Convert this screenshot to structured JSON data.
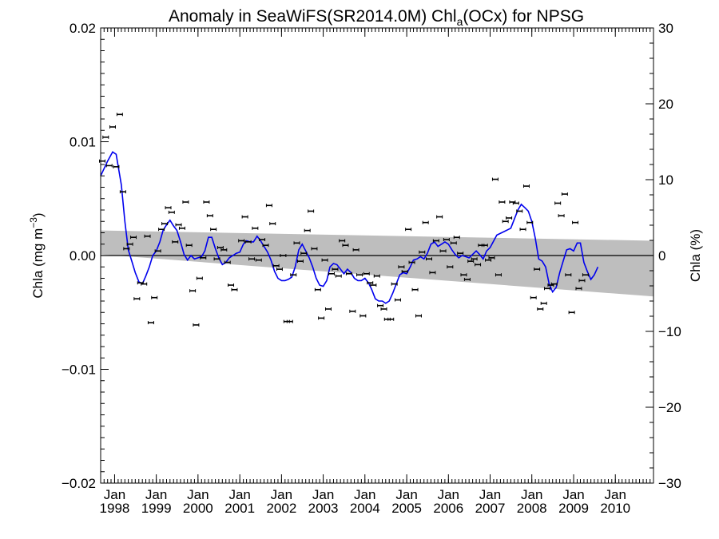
{
  "chart_data": {
    "type": "scatter",
    "title": "Anomaly in SeaWiFS(SR2014.0M) Chl",
    "title_sub": "a",
    "title_end": "(OCx) for NPSG",
    "ylabel": "Chla (mg m",
    "ylabel_sup": "−3",
    "ylabel_end": ")",
    "y2label": "Chla (%)",
    "xlim": [
      "1997-09-01",
      "2010-12-01"
    ],
    "ylim": [
      -0.02,
      0.02
    ],
    "y2lim": [
      -30,
      30
    ],
    "yticks": [
      -0.02,
      -0.01,
      0.0,
      0.01,
      0.02
    ],
    "ytick_labels": [
      "−0.02",
      "−0.01",
      "0.00",
      "0.01",
      "0.02"
    ],
    "y2ticks": [
      -30,
      -20,
      -10,
      0,
      10,
      20,
      30
    ],
    "y2tick_labels": [
      "−30",
      "−20",
      "−10",
      "0",
      "10",
      "20",
      "30"
    ],
    "xticks": [
      {
        "month": "Jan",
        "year": "1998",
        "date": "1998-01-01"
      },
      {
        "month": "Jan",
        "year": "1999",
        "date": "1999-01-01"
      },
      {
        "month": "Jan",
        "year": "2000",
        "date": "2000-01-01"
      },
      {
        "month": "Jan",
        "year": "2001",
        "date": "2001-01-01"
      },
      {
        "month": "Jan",
        "year": "2002",
        "date": "2002-01-01"
      },
      {
        "month": "Jan",
        "year": "2003",
        "date": "2003-01-01"
      },
      {
        "month": "Jan",
        "year": "2004",
        "date": "2004-01-01"
      },
      {
        "month": "Jan",
        "year": "2005",
        "date": "2005-01-01"
      },
      {
        "month": "Jan",
        "year": "2006",
        "date": "2006-01-01"
      },
      {
        "month": "Jan",
        "year": "2007",
        "date": "2007-01-01"
      },
      {
        "month": "Jan",
        "year": "2008",
        "date": "2008-01-01"
      },
      {
        "month": "Jan",
        "year": "2009",
        "date": "2009-01-01"
      },
      {
        "month": "Jan",
        "year": "2010",
        "date": "2010-01-01"
      }
    ],
    "zero_line": 0.0,
    "trend_band": {
      "start": "1997-09-01",
      "end": "2010-12-01",
      "upper": [
        0.0022,
        0.0013
      ],
      "lower": [
        0.0001,
        -0.0036
      ]
    },
    "points": [
      [
        "1997-09-15",
        0.0083
      ],
      [
        "1997-10-15",
        0.0104
      ],
      [
        "1997-11-15",
        0.0079
      ],
      [
        "1997-12-15",
        0.0113
      ],
      [
        "1998-01-15",
        0.0078
      ],
      [
        "1998-02-15",
        0.0124
      ],
      [
        "1998-03-15",
        0.0056
      ],
      [
        "1998-04-15",
        0.0006
      ],
      [
        "1998-05-15",
        0.001
      ],
      [
        "1998-06-15",
        0.0016
      ],
      [
        "1998-07-15",
        -0.0038
      ],
      [
        "1998-08-15",
        -0.0024
      ],
      [
        "1998-09-15",
        -0.0025
      ],
      [
        "1998-10-15",
        0.0017
      ],
      [
        "1998-11-15",
        -0.0059
      ],
      [
        "1998-12-15",
        -0.0037
      ],
      [
        "1999-01-15",
        0.0004
      ],
      [
        "1999-02-15",
        0.0023
      ],
      [
        "1999-03-15",
        0.0028
      ],
      [
        "1999-04-15",
        0.0042
      ],
      [
        "1999-05-15",
        0.0038
      ],
      [
        "1999-06-15",
        0.0012
      ],
      [
        "1999-07-15",
        0.0027
      ],
      [
        "1999-08-15",
        0.0024
      ],
      [
        "1999-09-15",
        0.0047
      ],
      [
        "1999-10-15",
        0.0009
      ],
      [
        "1999-11-15",
        -0.0031
      ],
      [
        "1999-12-15",
        -0.0061
      ],
      [
        "2000-01-15",
        -0.002
      ],
      [
        "2000-02-15",
        -0.0002
      ],
      [
        "2000-03-15",
        0.0047
      ],
      [
        "2000-04-15",
        0.0035
      ],
      [
        "2000-05-15",
        0.0023
      ],
      [
        "2000-06-15",
        -0.0003
      ],
      [
        "2000-07-15",
        0.0007
      ],
      [
        "2000-08-15",
        0.0005
      ],
      [
        "2000-09-15",
        -0.0006
      ],
      [
        "2000-10-15",
        -0.0026
      ],
      [
        "2000-11-15",
        -0.003
      ],
      [
        "2001-01-15",
        0.0013
      ],
      [
        "2001-02-15",
        0.0034
      ],
      [
        "2001-03-15",
        0.0012
      ],
      [
        "2001-04-15",
        -0.0003
      ],
      [
        "2001-05-15",
        0.0024
      ],
      [
        "2001-06-15",
        -0.0004
      ],
      [
        "2001-07-15",
        0.0014
      ],
      [
        "2001-08-15",
        0.0009
      ],
      [
        "2001-09-15",
        0.0044
      ],
      [
        "2001-10-15",
        0.0028
      ],
      [
        "2001-11-15",
        -0.0009
      ],
      [
        "2001-12-15",
        -0.0012
      ],
      [
        "2002-01-15",
        0.0
      ],
      [
        "2002-02-15",
        -0.0058
      ],
      [
        "2002-03-15",
        -0.0058
      ],
      [
        "2002-04-15",
        -0.0017
      ],
      [
        "2002-05-15",
        0.0011
      ],
      [
        "2002-06-15",
        -0.0005
      ],
      [
        "2002-07-15",
        0.0002
      ],
      [
        "2002-08-15",
        0.0022
      ],
      [
        "2002-09-15",
        0.0039
      ],
      [
        "2002-10-15",
        0.0006
      ],
      [
        "2002-11-15",
        -0.003
      ],
      [
        "2002-12-15",
        -0.0055
      ],
      [
        "2003-01-15",
        -0.0004
      ],
      [
        "2003-02-15",
        -0.0047
      ],
      [
        "2003-03-15",
        -0.0016
      ],
      [
        "2003-04-15",
        -0.0012
      ],
      [
        "2003-05-15",
        -0.0018
      ],
      [
        "2003-06-15",
        0.0013
      ],
      [
        "2003-07-15",
        0.0009
      ],
      [
        "2003-08-15",
        -0.0016
      ],
      [
        "2003-09-15",
        -0.0049
      ],
      [
        "2003-10-15",
        0.0005
      ],
      [
        "2003-11-15",
        -0.0017
      ],
      [
        "2003-12-15",
        -0.0053
      ],
      [
        "2004-01-15",
        -0.0016
      ],
      [
        "2004-02-15",
        -0.0024
      ],
      [
        "2004-03-15",
        -0.0026
      ],
      [
        "2004-04-15",
        -0.0018
      ],
      [
        "2004-05-15",
        -0.0044
      ],
      [
        "2004-06-15",
        -0.0047
      ],
      [
        "2004-07-15",
        -0.0056
      ],
      [
        "2004-08-15",
        -0.0056
      ],
      [
        "2004-09-15",
        -0.0025
      ],
      [
        "2004-10-15",
        -0.0039
      ],
      [
        "2004-11-15",
        -0.001
      ],
      [
        "2004-12-15",
        -0.0014
      ],
      [
        "2005-01-15",
        0.0023
      ],
      [
        "2005-02-15",
        -0.0006
      ],
      [
        "2005-03-15",
        -0.003
      ],
      [
        "2005-04-15",
        -0.0053
      ],
      [
        "2005-05-15",
        0.0003
      ],
      [
        "2005-06-15",
        0.0029
      ],
      [
        "2005-07-15",
        -0.0003
      ],
      [
        "2005-08-15",
        -0.0015
      ],
      [
        "2005-09-15",
        0.0013
      ],
      [
        "2005-10-15",
        0.0034
      ],
      [
        "2005-11-15",
        0.0004
      ],
      [
        "2005-12-15",
        0.0014
      ],
      [
        "2006-01-15",
        -0.001
      ],
      [
        "2006-02-15",
        0.0011
      ],
      [
        "2006-03-15",
        0.0016
      ],
      [
        "2006-04-15",
        0.0002
      ],
      [
        "2006-05-15",
        -0.0017
      ],
      [
        "2006-06-15",
        -0.0021
      ],
      [
        "2006-07-15",
        -0.0005
      ],
      [
        "2006-08-15",
        -0.0003
      ],
      [
        "2006-09-15",
        -0.0008
      ],
      [
        "2006-10-15",
        0.0009
      ],
      [
        "2006-11-15",
        0.0009
      ],
      [
        "2006-12-15",
        -0.0004
      ],
      [
        "2007-01-15",
        -0.0002
      ],
      [
        "2007-02-15",
        0.0067
      ],
      [
        "2007-03-15",
        -0.0017
      ],
      [
        "2007-04-15",
        0.0047
      ],
      [
        "2007-05-15",
        0.003
      ],
      [
        "2007-06-15",
        0.0033
      ],
      [
        "2007-07-15",
        0.0047
      ],
      [
        "2007-08-15",
        0.0046
      ],
      [
        "2007-09-15",
        0.0039
      ],
      [
        "2007-10-15",
        0.0023
      ],
      [
        "2007-11-15",
        0.0061
      ],
      [
        "2007-12-15",
        0.0029
      ],
      [
        "2008-01-15",
        -0.0037
      ],
      [
        "2008-02-15",
        -0.0012
      ],
      [
        "2008-03-15",
        -0.0047
      ],
      [
        "2008-04-15",
        -0.0042
      ],
      [
        "2008-05-15",
        -0.0029
      ],
      [
        "2008-06-15",
        -0.0026
      ],
      [
        "2008-07-15",
        -0.0025
      ],
      [
        "2008-08-15",
        0.0046
      ],
      [
        "2008-09-15",
        0.0035
      ],
      [
        "2008-10-15",
        0.0054
      ],
      [
        "2008-11-15",
        -0.0017
      ],
      [
        "2008-12-15",
        -0.005
      ],
      [
        "2009-01-15",
        0.0029
      ],
      [
        "2009-02-15",
        -0.0029
      ],
      [
        "2009-03-15",
        -0.0022
      ],
      [
        "2009-04-15",
        -0.0017
      ]
    ],
    "series": [
      {
        "color": "#0000ee",
        "points": [
          [
            "1997-09-01",
            0.007
          ],
          [
            "1997-11-01",
            0.0083
          ],
          [
            "1997-12-15",
            0.0091
          ],
          [
            "1998-01-15",
            0.0089
          ],
          [
            "1998-03-01",
            0.0062
          ],
          [
            "1998-04-01",
            0.003
          ],
          [
            "1998-05-01",
            0.0005
          ],
          [
            "1998-06-01",
            -0.0005
          ],
          [
            "1998-07-01",
            -0.0015
          ],
          [
            "1998-08-01",
            -0.0023
          ],
          [
            "1998-09-01",
            -0.0025
          ],
          [
            "1998-10-01",
            -0.0018
          ],
          [
            "1998-11-01",
            -0.001
          ],
          [
            "1998-12-01",
            0.0
          ],
          [
            "1999-01-01",
            0.0004
          ],
          [
            "1999-02-01",
            0.0012
          ],
          [
            "1999-03-01",
            0.0022
          ],
          [
            "1999-04-01",
            0.0027
          ],
          [
            "1999-05-01",
            0.0031
          ],
          [
            "1999-06-01",
            0.0026
          ],
          [
            "1999-07-01",
            0.0022
          ],
          [
            "1999-08-01",
            0.0012
          ],
          [
            "1999-09-01",
            0.0001
          ],
          [
            "1999-10-01",
            -0.0004
          ],
          [
            "1999-11-01",
            0.0
          ],
          [
            "1999-12-01",
            -0.0003
          ],
          [
            "2000-01-01",
            -0.0002
          ],
          [
            "2000-02-01",
            -0.0001
          ],
          [
            "2000-03-01",
            0.0004
          ],
          [
            "2000-04-01",
            0.0016
          ],
          [
            "2000-05-01",
            0.0016
          ],
          [
            "2000-06-01",
            0.0006
          ],
          [
            "2000-07-01",
            -0.0002
          ],
          [
            "2000-08-01",
            -0.0008
          ],
          [
            "2000-09-01",
            -0.0006
          ],
          [
            "2000-10-01",
            -0.0002
          ],
          [
            "2000-11-01",
            0.0
          ],
          [
            "2000-12-01",
            0.0002
          ],
          [
            "2001-01-01",
            0.0003
          ],
          [
            "2001-02-01",
            0.001
          ],
          [
            "2001-03-01",
            0.0013
          ],
          [
            "2001-04-01",
            0.0012
          ],
          [
            "2001-05-01",
            0.0012
          ],
          [
            "2001-06-01",
            0.0017
          ],
          [
            "2001-07-01",
            0.0013
          ],
          [
            "2001-08-01",
            0.0008
          ],
          [
            "2001-09-01",
            0.0003
          ],
          [
            "2001-10-01",
            -0.0004
          ],
          [
            "2001-11-01",
            -0.0014
          ],
          [
            "2001-12-01",
            -0.002
          ],
          [
            "2002-01-01",
            -0.0022
          ],
          [
            "2002-02-01",
            -0.0022
          ],
          [
            "2002-03-01",
            -0.0021
          ],
          [
            "2002-04-01",
            -0.0019
          ],
          [
            "2002-05-01",
            -0.001
          ],
          [
            "2002-06-01",
            0.0005
          ],
          [
            "2002-07-01",
            0.001
          ],
          [
            "2002-08-01",
            0.0004
          ],
          [
            "2002-09-01",
            -0.0002
          ],
          [
            "2002-10-01",
            -0.001
          ],
          [
            "2002-11-01",
            -0.002
          ],
          [
            "2002-12-01",
            -0.0026
          ],
          [
            "2003-01-01",
            -0.0027
          ],
          [
            "2003-02-01",
            -0.0022
          ],
          [
            "2003-03-01",
            -0.001
          ],
          [
            "2003-04-01",
            -0.0007
          ],
          [
            "2003-05-01",
            -0.0008
          ],
          [
            "2003-06-01",
            -0.0012
          ],
          [
            "2003-07-01",
            -0.0016
          ],
          [
            "2003-08-01",
            -0.0012
          ],
          [
            "2003-09-01",
            -0.0015
          ],
          [
            "2003-10-01",
            -0.002
          ],
          [
            "2003-11-01",
            -0.0022
          ],
          [
            "2003-12-01",
            -0.0022
          ],
          [
            "2004-01-01",
            -0.002
          ],
          [
            "2004-02-01",
            -0.0024
          ],
          [
            "2004-03-01",
            -0.003
          ],
          [
            "2004-04-01",
            -0.0038
          ],
          [
            "2004-05-01",
            -0.004
          ],
          [
            "2004-06-01",
            -0.004
          ],
          [
            "2004-07-01",
            -0.0042
          ],
          [
            "2004-08-01",
            -0.004
          ],
          [
            "2004-09-01",
            -0.0033
          ],
          [
            "2004-10-01",
            -0.0025
          ],
          [
            "2004-11-01",
            -0.0017
          ],
          [
            "2004-12-01",
            -0.0015
          ],
          [
            "2005-01-01",
            -0.0016
          ],
          [
            "2005-02-01",
            -0.001
          ],
          [
            "2005-03-01",
            -0.0004
          ],
          [
            "2005-04-01",
            -0.0003
          ],
          [
            "2005-05-01",
            -0.0001
          ],
          [
            "2005-06-01",
            -0.0003
          ],
          [
            "2005-07-01",
            0.0002
          ],
          [
            "2005-08-01",
            0.001
          ],
          [
            "2005-09-01",
            0.0012
          ],
          [
            "2005-10-01",
            0.0008
          ],
          [
            "2005-11-01",
            0.001
          ],
          [
            "2005-12-01",
            0.0012
          ],
          [
            "2006-01-01",
            0.001
          ],
          [
            "2006-02-01",
            0.0005
          ],
          [
            "2006-03-01",
            0.0001
          ],
          [
            "2006-04-01",
            -0.0002
          ],
          [
            "2006-05-01",
            0.0
          ],
          [
            "2006-06-01",
            -0.0001
          ],
          [
            "2006-07-01",
            -0.0002
          ],
          [
            "2006-08-01",
            0.0001
          ],
          [
            "2006-09-01",
            0.0004
          ],
          [
            "2006-10-01",
            0.0001
          ],
          [
            "2006-11-01",
            -0.0003
          ],
          [
            "2006-12-01",
            0.0004
          ],
          [
            "2007-01-01",
            0.0007
          ],
          [
            "2007-03-01",
            0.0018
          ],
          [
            "2007-05-01",
            0.0021
          ],
          [
            "2007-07-01",
            0.0024
          ],
          [
            "2007-08-01",
            0.0032
          ],
          [
            "2007-09-01",
            0.004
          ],
          [
            "2007-10-01",
            0.0045
          ],
          [
            "2007-11-01",
            0.0042
          ],
          [
            "2007-12-01",
            0.0039
          ],
          [
            "2008-01-01",
            0.003
          ],
          [
            "2008-02-01",
            0.0015
          ],
          [
            "2008-03-01",
            -0.0003
          ],
          [
            "2008-04-01",
            -0.0005
          ],
          [
            "2008-05-01",
            -0.001
          ],
          [
            "2008-06-01",
            -0.0025
          ],
          [
            "2008-07-01",
            -0.0032
          ],
          [
            "2008-08-01",
            -0.0028
          ],
          [
            "2008-09-01",
            -0.0015
          ],
          [
            "2008-10-01",
            -0.0005
          ],
          [
            "2008-11-01",
            0.0005
          ],
          [
            "2008-12-01",
            0.0006
          ],
          [
            "2009-01-01",
            0.0004
          ],
          [
            "2009-02-01",
            0.0011
          ],
          [
            "2009-03-01",
            0.0011
          ],
          [
            "2009-04-01",
            -0.0006
          ],
          [
            "2009-05-01",
            -0.0014
          ],
          [
            "2009-06-01",
            -0.0021
          ],
          [
            "2009-07-01",
            -0.0017
          ],
          [
            "2009-08-01",
            -0.001
          ]
        ]
      }
    ]
  }
}
